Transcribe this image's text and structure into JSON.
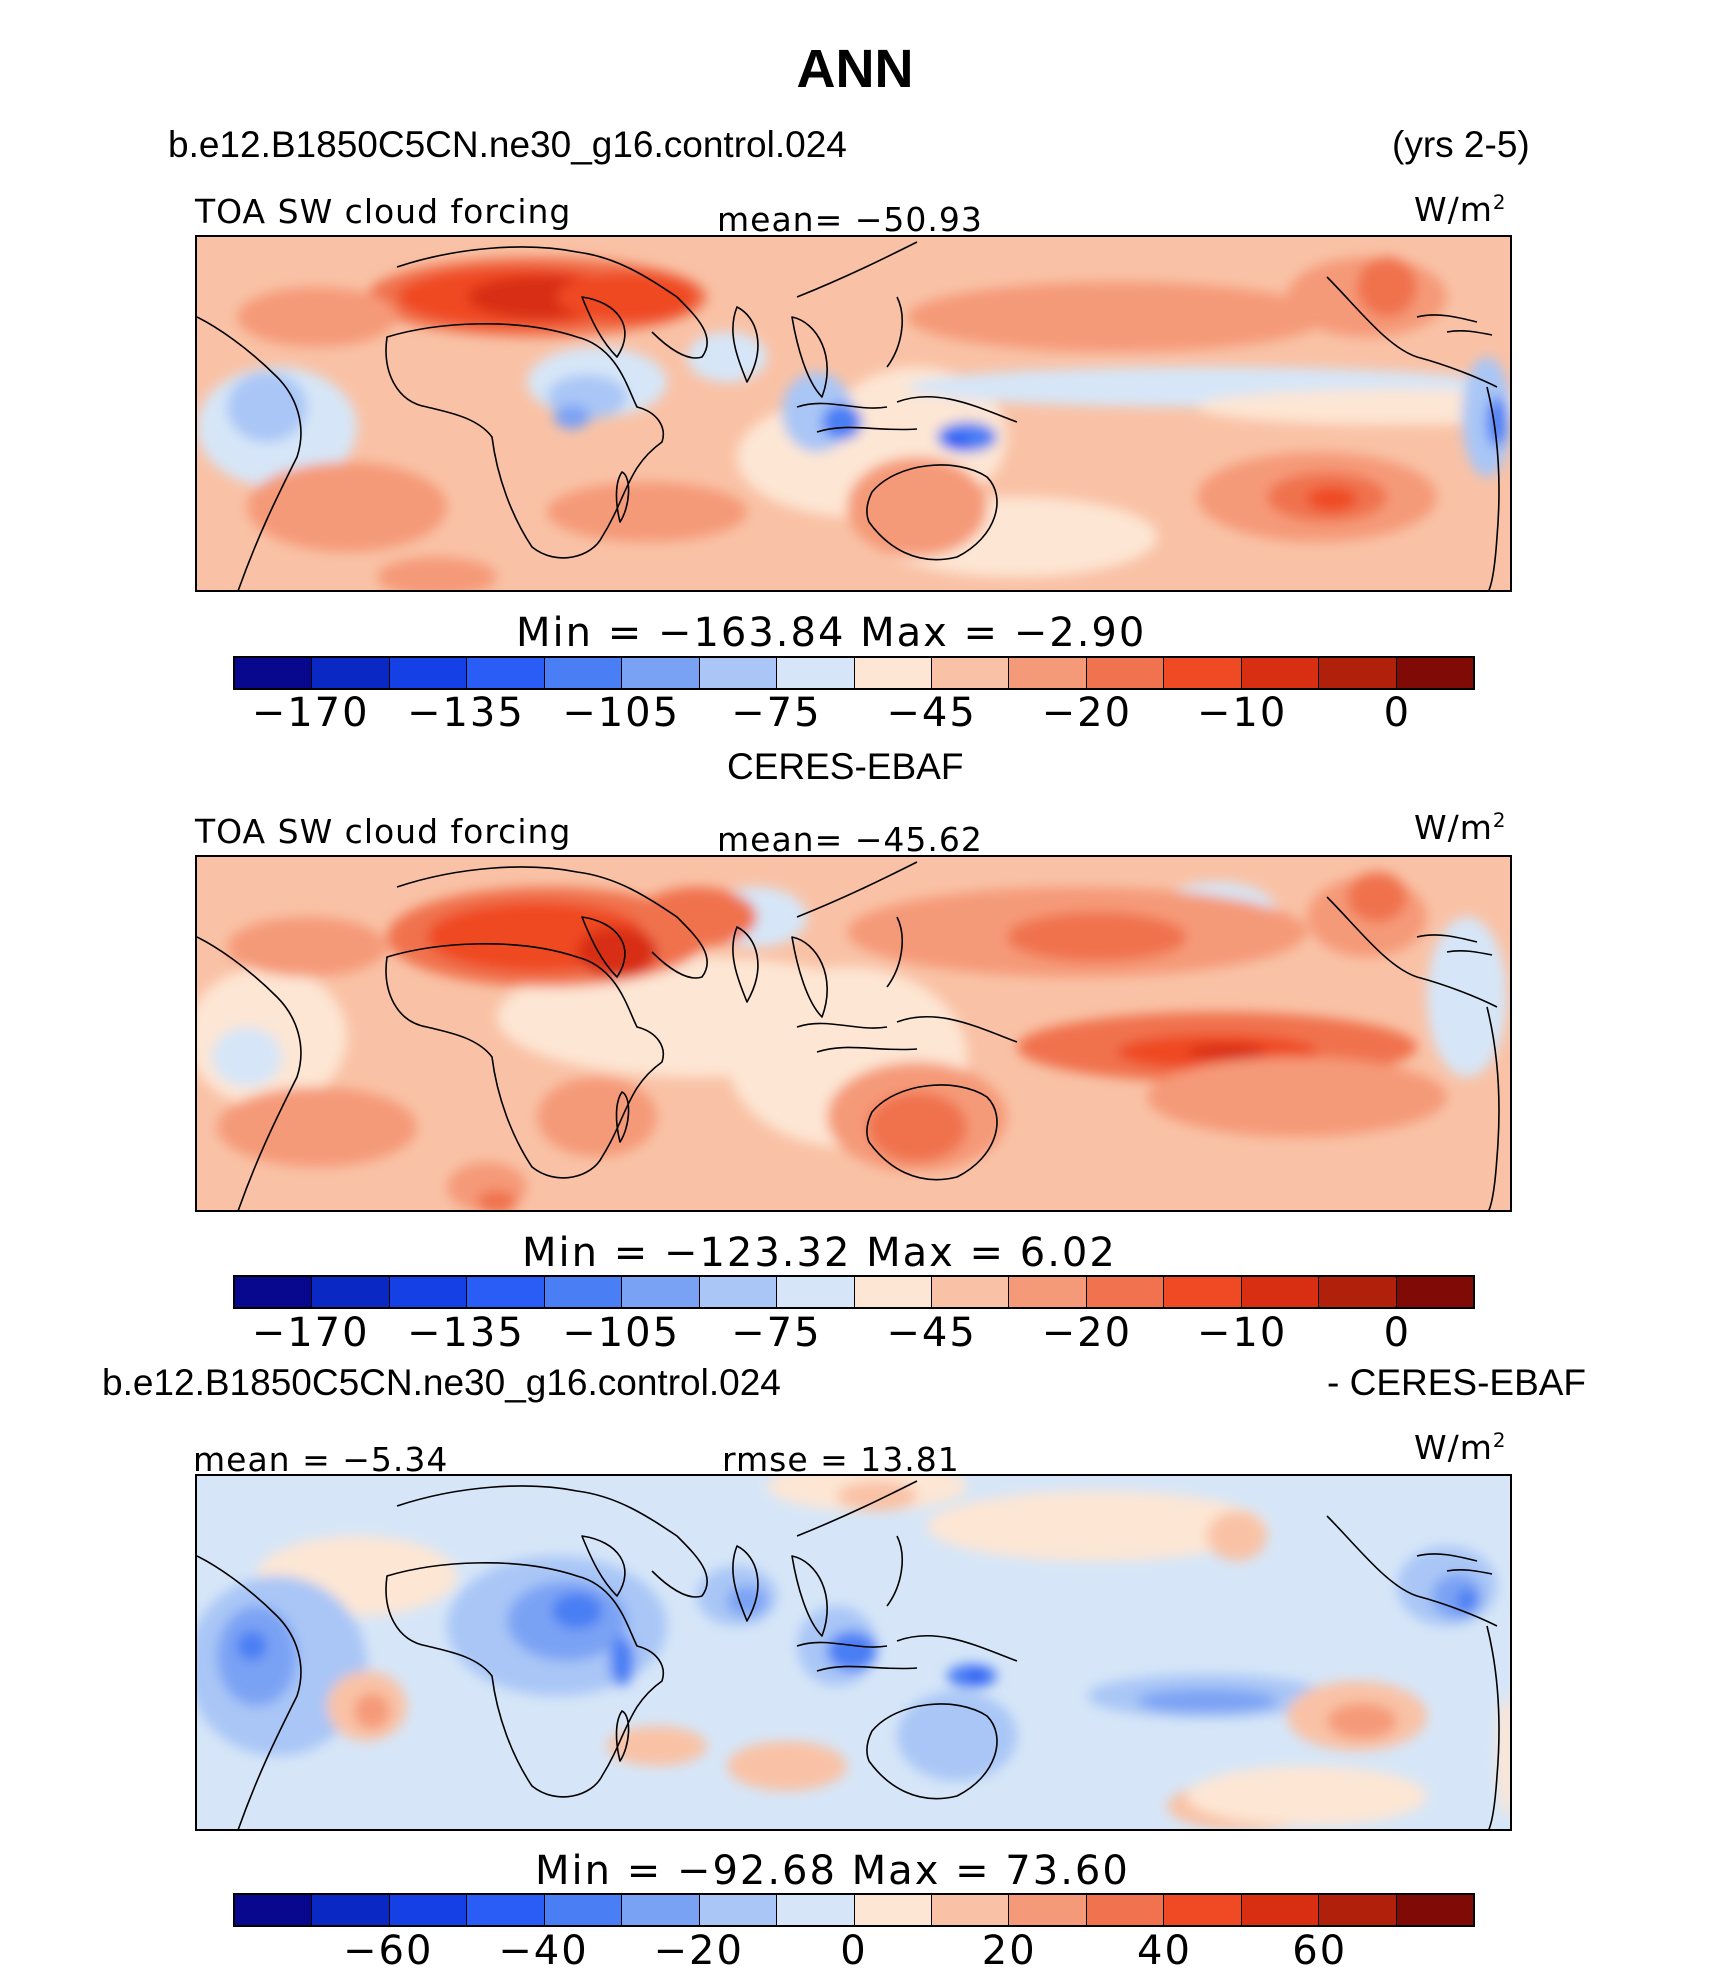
{
  "title": "ANN",
  "panels": [
    {
      "case_name": "b.e12.B1850C5CN.ne30_g16.control.024",
      "years": "(yrs 2-5)",
      "variable": "TOA SW cloud forcing",
      "mean_label": "mean= −50.93",
      "units": "W/m",
      "units_exp": "2",
      "minmax_label": "Min = −163.84 Max = −2.90",
      "colorbar_ticks": [
        "−170",
        "−135",
        "−105",
        "−75",
        "−45",
        "−20",
        "−10",
        "0"
      ]
    },
    {
      "case_name": "CERES-EBAF",
      "variable": "TOA SW cloud forcing",
      "mean_label": "mean= −45.62",
      "units": "W/m",
      "units_exp": "2",
      "minmax_label": "Min = −123.32 Max = 6.02",
      "colorbar_ticks": [
        "−170",
        "−135",
        "−105",
        "−75",
        "−45",
        "−20",
        "−10",
        "0"
      ]
    },
    {
      "case_name": "b.e12.B1850C5CN.ne30_g16.control.024",
      "minus_label": "- CERES-EBAF",
      "mean_label": "mean = −5.34",
      "rmse_label": "rmse = 13.81",
      "units": "W/m",
      "units_exp": "2",
      "minmax_label": "Min = −92.68 Max = 73.60",
      "colorbar_ticks": [
        "−60",
        "−40",
        "−20",
        "0",
        "20",
        "40",
        "60"
      ]
    }
  ],
  "colors": {
    "scale": [
      "#08088f",
      "#0a28c4",
      "#1440e6",
      "#2a5cf6",
      "#4a7ef4",
      "#7aa2f4",
      "#a9c6f6",
      "#d6e6f8",
      "#fde6d4",
      "#f9c2a6",
      "#f59a78",
      "#f0724e",
      "#ef4a23",
      "#d82e12",
      "#b0200b",
      "#800b06"
    ],
    "coast": "#000000"
  },
  "chart_data": [
    {
      "type": "heatmap",
      "title": "TOA SW cloud forcing",
      "case": "b.e12.B1850C5CN.ne30_g16.control.024",
      "period": "(yrs 2-5)",
      "units": "W/m2",
      "mean": -50.93,
      "min": -163.84,
      "max": -2.9,
      "colorbar_levels": [
        -170,
        -135,
        -105,
        -75,
        -45,
        -20,
        -10,
        0
      ]
    },
    {
      "type": "heatmap",
      "title": "TOA SW cloud forcing",
      "case": "CERES-EBAF",
      "units": "W/m2",
      "mean": -45.62,
      "min": -123.32,
      "max": 6.02,
      "colorbar_levels": [
        -170,
        -135,
        -105,
        -75,
        -45,
        -20,
        -10,
        0
      ]
    },
    {
      "type": "heatmap",
      "title": "b.e12.B1850C5CN.ne30_g16.control.024 - CERES-EBAF",
      "units": "W/m2",
      "mean": -5.34,
      "rmse": 13.81,
      "min": -92.68,
      "max": 73.6,
      "colorbar_levels": [
        -60,
        -40,
        -20,
        0,
        20,
        40,
        60
      ]
    }
  ]
}
